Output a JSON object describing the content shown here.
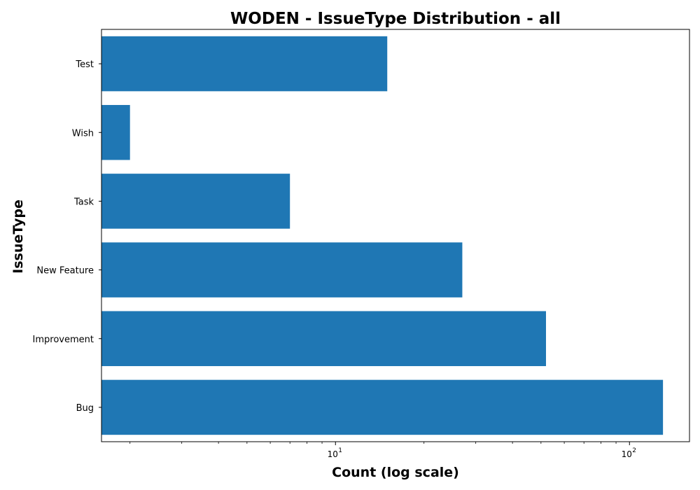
{
  "chart_data": {
    "type": "bar",
    "orientation": "horizontal",
    "title": "WODEN - IssueType Distribution - all",
    "xlabel": "Count (log scale)",
    "ylabel": "IssueType",
    "x_scale": "log",
    "xlim": [
      1.6,
      160
    ],
    "x_ticks": [
      {
        "base": "10",
        "exp": "1",
        "value": 10
      },
      {
        "base": "10",
        "exp": "2",
        "value": 100
      }
    ],
    "categories": [
      "Bug",
      "Improvement",
      "New Feature",
      "Task",
      "Wish",
      "Test"
    ],
    "values": [
      130,
      52,
      27,
      7,
      2,
      15
    ],
    "bar_color": "#1f77b4",
    "grid": false,
    "legend": "none"
  }
}
